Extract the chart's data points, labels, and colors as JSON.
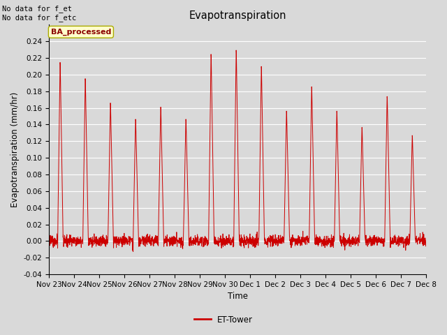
{
  "title": "Evapotranspiration",
  "ylabel": "Evapotranspiration (mm/hr)",
  "xlabel": "Time",
  "ylim": [
    -0.04,
    0.26
  ],
  "yticks": [
    -0.04,
    -0.02,
    0.0,
    0.02,
    0.04,
    0.06,
    0.08,
    0.1,
    0.12,
    0.14,
    0.16,
    0.18,
    0.2,
    0.22,
    0.24
  ],
  "line_color": "#cc0000",
  "background_color": "#d9d9d9",
  "axes_bg_color": "#d9d9d9",
  "grid_color": "#ffffff",
  "annotation_top_left": "No data for f_et\nNo data for f_etc",
  "legend_label": "ET-Tower",
  "ba_box_label": "BA_processed",
  "tick_labels": [
    "Nov 23",
    "Nov 24",
    "Nov 25",
    "Nov 26",
    "Nov 27",
    "Nov 28",
    "Nov 29",
    "Nov 30",
    "Dec 1",
    "Dec 2",
    "Dec 3",
    "Dec 4",
    "Dec 5",
    "Dec 6",
    "Dec 7",
    "Dec 8"
  ],
  "peak_heights": [
    0.22,
    0.2,
    0.17,
    0.15,
    0.165,
    0.15,
    0.23,
    0.235,
    0.215,
    0.16,
    0.19,
    0.16,
    0.14,
    0.178,
    0.13
  ],
  "n_days": 15
}
